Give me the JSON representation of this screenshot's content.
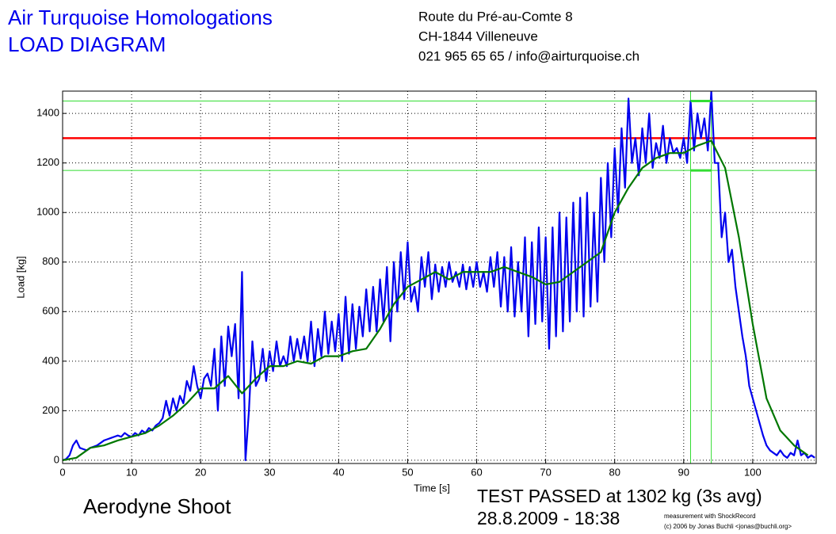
{
  "chart_data": {
    "type": "line",
    "title": [
      "Air Turquoise Homologations",
      "LOAD DIAGRAM"
    ],
    "address": [
      "Route du Pré-au-Comte 8",
      "CH-1844 Villeneuve",
      "021 965 65 65 / info@airturquoise.ch"
    ],
    "subject": "Aerodyne Shoot",
    "result": [
      "TEST PASSED at 1302 kg (3s avg)",
      "28.8.2009 - 18:38"
    ],
    "credits": [
      "measurement with ShockRecord",
      "(c) 2006 by Jonas Buchli <jonas@buchli.org>"
    ],
    "x_label": "Time [s]",
    "y_label": "Load [kg]",
    "xlim": [
      0,
      109.2
    ],
    "ylim": [
      -13,
      1490
    ],
    "xticks": [
      0,
      10,
      20,
      30,
      40,
      50,
      60,
      70,
      80,
      90,
      100
    ],
    "yticks": [
      0,
      200,
      400,
      600,
      800,
      1000,
      1200,
      1400
    ],
    "grid": true,
    "series": [
      {
        "color": "#0000ee",
        "x": [
          0,
          0.5,
          1,
          1.5,
          2,
          2.5,
          3,
          3.5,
          4,
          4.5,
          5,
          5.5,
          6,
          6.5,
          7,
          7.5,
          8,
          8.5,
          9,
          9.5,
          10,
          10.5,
          11,
          11.5,
          12,
          12.5,
          13,
          13.5,
          14,
          14.5,
          15,
          15.5,
          16,
          16.5,
          17,
          17.5,
          18,
          18.5,
          19,
          19.5,
          20,
          20.5,
          21,
          21.5,
          22,
          22.5,
          23,
          23.5,
          24,
          24.5,
          25,
          25.5,
          26,
          26.5,
          27,
          27.5,
          28,
          28.5,
          29,
          29.5,
          30,
          30.5,
          31,
          31.5,
          32,
          32.5,
          33,
          33.5,
          34,
          34.5,
          35,
          35.5,
          36,
          36.5,
          37,
          37.5,
          38,
          38.5,
          39,
          39.5,
          40,
          40.5,
          41,
          41.5,
          42,
          42.5,
          43,
          43.5,
          44,
          44.5,
          45,
          45.5,
          46,
          46.5,
          47,
          47.5,
          48,
          48.5,
          49,
          49.5,
          50,
          50.5,
          51,
          51.5,
          52,
          52.5,
          53,
          53.5,
          54,
          54.5,
          55,
          55.5,
          56,
          56.5,
          57,
          57.5,
          58,
          58.5,
          59,
          59.5,
          60,
          60.5,
          61,
          61.5,
          62,
          62.5,
          63,
          63.5,
          64,
          64.5,
          65,
          65.5,
          66,
          66.5,
          67,
          67.5,
          68,
          68.5,
          69,
          69.5,
          70,
          70.5,
          71,
          71.5,
          72,
          72.5,
          73,
          73.5,
          74,
          74.5,
          75,
          75.5,
          76,
          76.5,
          77,
          77.5,
          78,
          78.5,
          79,
          79.5,
          80,
          80.5,
          81,
          81.5,
          82,
          82.5,
          83,
          83.5,
          84,
          84.5,
          85,
          85.5,
          86,
          86.5,
          87,
          87.5,
          88,
          88.5,
          89,
          89.5,
          90,
          90.5,
          91,
          91.5,
          92,
          92.5,
          93,
          93.5,
          94,
          94.5,
          95,
          95.5,
          96,
          96.5,
          97,
          97.5,
          98,
          98.5,
          99,
          99.5,
          100,
          100.5,
          101,
          101.5,
          102,
          102.5,
          103,
          103.5,
          104,
          104.5,
          105,
          105.5,
          106,
          106.5,
          107,
          107.5,
          108,
          108.5,
          109
        ],
        "values": [
          0,
          5,
          20,
          60,
          80,
          50,
          45,
          40,
          50,
          55,
          60,
          70,
          80,
          85,
          90,
          95,
          100,
          95,
          110,
          100,
          95,
          110,
          100,
          120,
          110,
          130,
          120,
          140,
          150,
          170,
          240,
          180,
          250,
          200,
          260,
          230,
          320,
          280,
          380,
          300,
          250,
          330,
          350,
          300,
          450,
          200,
          500,
          300,
          540,
          420,
          550,
          250,
          760,
          0,
          200,
          480,
          300,
          330,
          450,
          320,
          440,
          360,
          480,
          380,
          420,
          380,
          500,
          400,
          490,
          410,
          500,
          400,
          560,
          380,
          530,
          420,
          600,
          430,
          560,
          440,
          590,
          400,
          660,
          430,
          630,
          450,
          620,
          500,
          690,
          520,
          700,
          520,
          730,
          560,
          780,
          480,
          800,
          600,
          840,
          650,
          880,
          640,
          700,
          600,
          820,
          700,
          840,
          650,
          790,
          680,
          780,
          700,
          800,
          720,
          760,
          700,
          790,
          690,
          780,
          700,
          800,
          700,
          760,
          680,
          820,
          700,
          840,
          620,
          820,
          600,
          860,
          580,
          800,
          600,
          900,
          500,
          880,
          550,
          940,
          560,
          900,
          450,
          940,
          500,
          1000,
          520,
          980,
          560,
          1040,
          600,
          1060,
          580,
          1080,
          620,
          1000,
          640,
          1140,
          800,
          1200,
          900,
          1260,
          1000,
          1340,
          1100,
          1460,
          1200,
          1300,
          1150,
          1340,
          1200,
          1400,
          1180,
          1280,
          1220,
          1350,
          1200,
          1300,
          1240,
          1260,
          1220,
          1300,
          1200,
          1450,
          1250,
          1400,
          1300,
          1380,
          1250,
          1490,
          1200,
          1200,
          900,
          1000,
          800,
          850,
          700,
          600,
          500,
          420,
          300,
          250,
          200,
          150,
          100,
          60,
          40,
          30,
          20,
          40,
          20,
          10,
          30,
          20,
          80,
          20,
          30,
          10,
          20,
          10
        ]
      },
      {
        "color": "#007700",
        "x": [
          0,
          2,
          4,
          6,
          8,
          10,
          12,
          14,
          16,
          18,
          20,
          22,
          24,
          26,
          28,
          30,
          32,
          34,
          36,
          38,
          40,
          42,
          44,
          46,
          48,
          50,
          52,
          54,
          56,
          58,
          60,
          62,
          64,
          66,
          68,
          70,
          72,
          74,
          76,
          78,
          80,
          82,
          84,
          86,
          88,
          90,
          92,
          94,
          96,
          98,
          100,
          102,
          104,
          106,
          108
        ],
        "values": [
          0,
          10,
          50,
          60,
          80,
          95,
          110,
          140,
          180,
          230,
          290,
          290,
          340,
          270,
          330,
          380,
          380,
          400,
          390,
          420,
          420,
          440,
          450,
          530,
          630,
          700,
          730,
          760,
          730,
          760,
          760,
          760,
          780,
          760,
          740,
          710,
          720,
          760,
          800,
          840,
          1000,
          1100,
          1180,
          1220,
          1240,
          1240,
          1270,
          1290,
          1180,
          900,
          550,
          250,
          120,
          60,
          20
        ]
      }
    ],
    "hlines": [
      {
        "y": 1300,
        "color": "#ff0000"
      },
      {
        "y": 1450,
        "color": "#33dd33"
      },
      {
        "y": 1170,
        "color": "#33dd33"
      }
    ],
    "vlines": [
      {
        "x": 91,
        "color": "#33dd33"
      },
      {
        "x": 94,
        "color": "#33dd33"
      }
    ]
  }
}
